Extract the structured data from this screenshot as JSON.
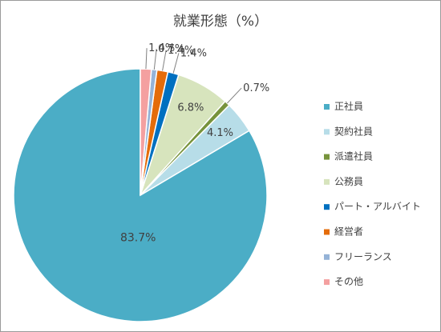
{
  "chart_data": {
    "type": "pie",
    "title": "就業形態（%）",
    "legend_position": "right",
    "slices": [
      {
        "label": "正社員",
        "value": 83.7,
        "value_label": "83.7%",
        "color": "#4badc6"
      },
      {
        "label": "契約社員",
        "value": 4.1,
        "value_label": "4.1%",
        "color": "#b7dde8"
      },
      {
        "label": "派遣社員",
        "value": 0.7,
        "value_label": "0.7%",
        "color": "#77933c"
      },
      {
        "label": "公務員",
        "value": 6.8,
        "value_label": "6.8%",
        "color": "#d7e4bd"
      },
      {
        "label": "パート・アルバイト",
        "value": 1.4,
        "value_label": "1.4%",
        "color": "#0070c0"
      },
      {
        "label": "経営者",
        "value": 1.4,
        "value_label": "1.4%",
        "color": "#e46c0a"
      },
      {
        "label": "フリーランス",
        "value": 0.7,
        "value_label": "0.7%",
        "color": "#95b3d7"
      },
      {
        "label": "その他",
        "value": 1.4,
        "value_label": "1.4%",
        "color": "#f4a0a0"
      }
    ]
  }
}
